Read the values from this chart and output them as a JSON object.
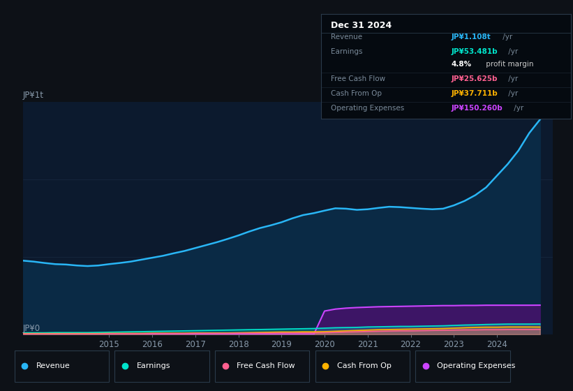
{
  "bg_color": "#0d1117",
  "chart_bg": "#0c1a2e",
  "ylabel_top": "JP¥1t",
  "ylabel_bottom": "JP¥0",
  "years": [
    2013.0,
    2013.25,
    2013.5,
    2013.75,
    2014.0,
    2014.25,
    2014.5,
    2014.75,
    2015.0,
    2015.25,
    2015.5,
    2015.75,
    2016.0,
    2016.25,
    2016.5,
    2016.75,
    2017.0,
    2017.25,
    2017.5,
    2017.75,
    2018.0,
    2018.25,
    2018.5,
    2018.75,
    2019.0,
    2019.25,
    2019.5,
    2019.75,
    2020.0,
    2020.25,
    2020.5,
    2020.75,
    2021.0,
    2021.25,
    2021.5,
    2021.75,
    2022.0,
    2022.25,
    2022.5,
    2022.75,
    2023.0,
    2023.25,
    2023.5,
    2023.75,
    2024.0,
    2024.25,
    2024.5,
    2024.75,
    2025.0
  ],
  "revenue": [
    380,
    375,
    368,
    362,
    360,
    355,
    352,
    355,
    362,
    368,
    375,
    385,
    395,
    405,
    418,
    430,
    445,
    460,
    475,
    492,
    510,
    530,
    548,
    562,
    578,
    598,
    615,
    625,
    638,
    650,
    648,
    642,
    645,
    652,
    658,
    656,
    652,
    648,
    645,
    648,
    665,
    688,
    718,
    758,
    818,
    878,
    948,
    1038,
    1108
  ],
  "earnings": [
    8,
    8,
    8,
    9,
    9,
    9,
    9,
    10,
    11,
    12,
    13,
    14,
    15,
    16,
    17,
    18,
    19,
    20,
    21,
    22,
    23,
    24,
    25,
    26,
    27,
    28,
    29,
    30,
    32,
    34,
    35,
    36,
    38,
    39,
    40,
    41,
    41,
    42,
    43,
    44,
    46,
    48,
    49,
    51,
    52,
    53,
    53,
    53,
    53.5
  ],
  "free_cash_flow": [
    2,
    2,
    2,
    2,
    2,
    2,
    2,
    2,
    3,
    3,
    3,
    3,
    4,
    4,
    4,
    4,
    5,
    5,
    5,
    5,
    6,
    6,
    6,
    6,
    7,
    7,
    7,
    7,
    8,
    10,
    12,
    13,
    15,
    16,
    17,
    18,
    18,
    19,
    20,
    21,
    22,
    23,
    23,
    24,
    24,
    25,
    25,
    25,
    25.6
  ],
  "cash_from_op": [
    4,
    4,
    4,
    4,
    4,
    4,
    4,
    4,
    5,
    5,
    5,
    5,
    6,
    6,
    6,
    6,
    7,
    7,
    7,
    7,
    8,
    9,
    10,
    11,
    12,
    12,
    13,
    13,
    14,
    16,
    18,
    20,
    22,
    24,
    25,
    26,
    27,
    28,
    29,
    30,
    32,
    34,
    36,
    37,
    37,
    38,
    38,
    38,
    37.7
  ],
  "operating_expenses": [
    0,
    0,
    0,
    0,
    0,
    0,
    0,
    0,
    0,
    0,
    0,
    0,
    0,
    0,
    0,
    0,
    0,
    0,
    0,
    0,
    0,
    0,
    0,
    0,
    0,
    0,
    0,
    0,
    120,
    130,
    135,
    138,
    140,
    142,
    143,
    144,
    145,
    146,
    147,
    148,
    148,
    149,
    149,
    150,
    150,
    150,
    150,
    150,
    150.3
  ],
  "revenue_color": "#29b6f6",
  "revenue_fill": "#0a2a45",
  "earnings_color": "#00e5cc",
  "fcf_color": "#ff6090",
  "cash_op_color": "#ffb300",
  "op_exp_color": "#cc44ff",
  "op_exp_fill": "#3d1566",
  "grid_color": "#1a2e45",
  "tick_color": "#8899aa",
  "info_box_bg": "#050a10",
  "info_box_border": "#2a3a4a",
  "info_box": {
    "title": "Dec 31 2024",
    "rows": [
      {
        "label": "Revenue",
        "value": "JP¥1.108t",
        "suffix": " /yr",
        "value_color": "#29b6f6"
      },
      {
        "label": "Earnings",
        "value": "JP¥53.481b",
        "suffix": " /yr",
        "value_color": "#00e5cc"
      },
      {
        "label": "",
        "value": "4.8%",
        "suffix": " profit margin",
        "value_color": "#ffffff"
      },
      {
        "label": "Free Cash Flow",
        "value": "JP¥25.625b",
        "suffix": " /yr",
        "value_color": "#ff6090"
      },
      {
        "label": "Cash From Op",
        "value": "JP¥37.711b",
        "suffix": " /yr",
        "value_color": "#ffb300"
      },
      {
        "label": "Operating Expenses",
        "value": "JP¥150.260b",
        "suffix": " /yr",
        "value_color": "#cc44ff"
      }
    ]
  },
  "legend": [
    {
      "label": "Revenue",
      "color": "#29b6f6"
    },
    {
      "label": "Earnings",
      "color": "#00e5cc"
    },
    {
      "label": "Free Cash Flow",
      "color": "#ff6090"
    },
    {
      "label": "Cash From Op",
      "color": "#ffb300"
    },
    {
      "label": "Operating Expenses",
      "color": "#cc44ff"
    }
  ],
  "x_ticks": [
    2015,
    2016,
    2017,
    2018,
    2019,
    2020,
    2021,
    2022,
    2023,
    2024
  ],
  "ylim_max": 1200,
  "xlim": [
    2013.0,
    2025.3
  ]
}
